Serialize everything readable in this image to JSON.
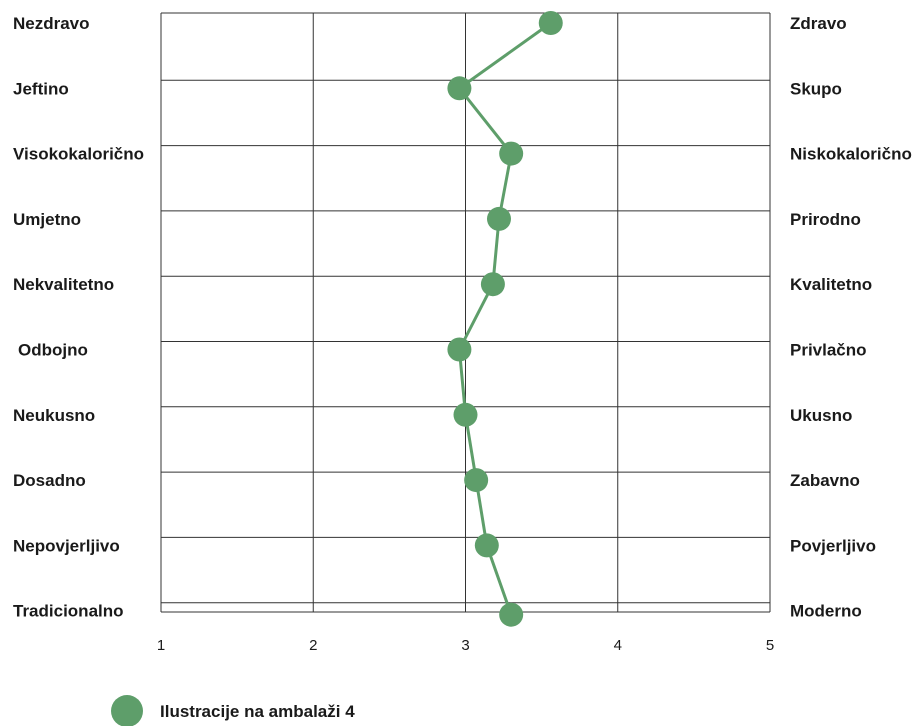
{
  "chart_data": {
    "type": "line",
    "orientation": "horizontal-profile",
    "left_labels": [
      "Nezdravo",
      "Jeftino",
      "Visokokalorično",
      "Umjetno",
      "Nekvalitetno",
      "Odbojno",
      "Neukusno",
      "Dosadno",
      "Nepovjerljivo",
      "Tradicionalno"
    ],
    "right_labels": [
      "Zdravo",
      "Skupo",
      "Niskokalorično",
      "Prirodno",
      "Kvalitetno",
      "Privlačno",
      "Ukusno",
      "Zabavno",
      "Povjerljivo",
      "Moderno"
    ],
    "x_ticks": [
      "1",
      "2",
      "3",
      "4",
      "5"
    ],
    "xlim": [
      1,
      5
    ],
    "series": [
      {
        "name": "Ilustracije na ambalaži 4",
        "color": "#5e9e6a",
        "values": [
          3.56,
          2.96,
          3.3,
          3.22,
          3.18,
          2.96,
          3.0,
          3.07,
          3.14,
          3.3
        ]
      }
    ],
    "grid": true,
    "legend": "bottom-left"
  }
}
